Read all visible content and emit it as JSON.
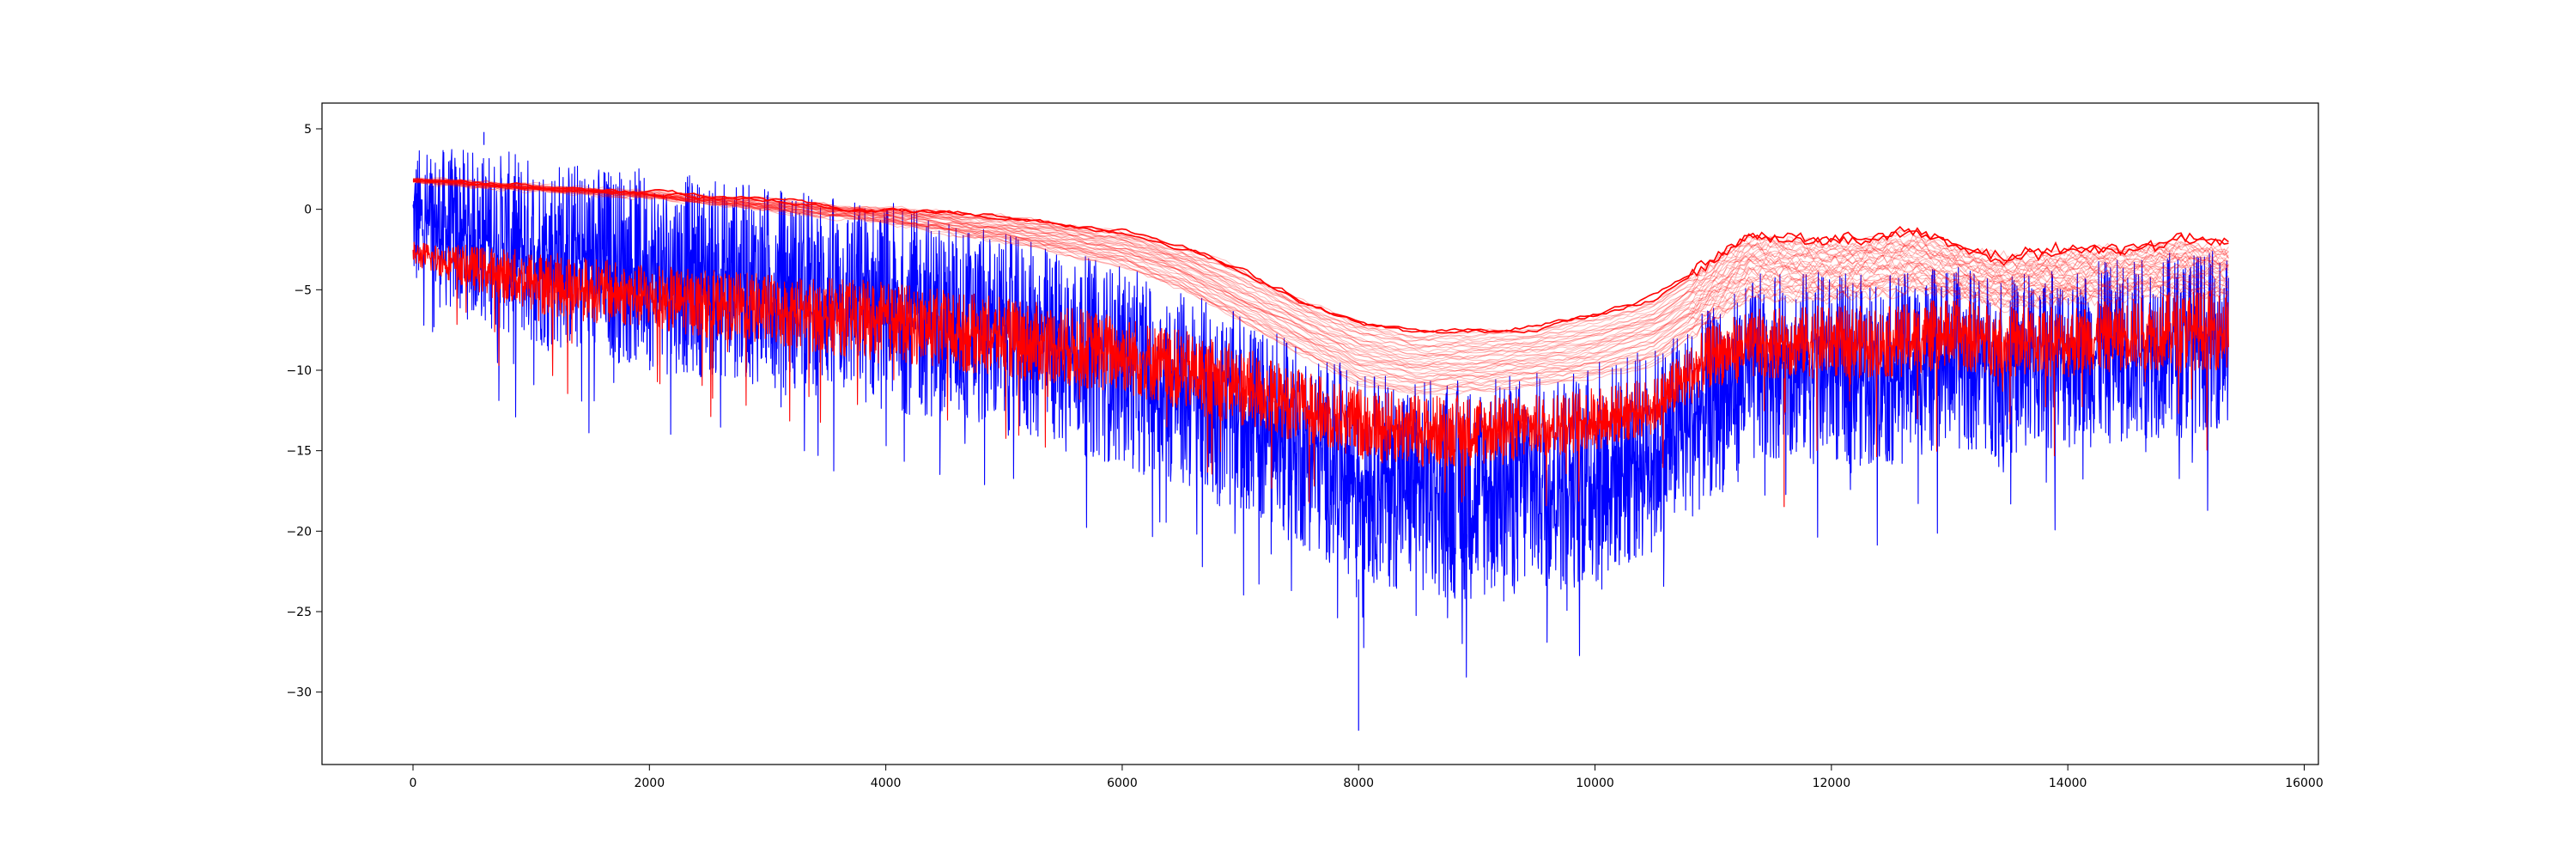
{
  "chart_data": {
    "type": "line",
    "title": "",
    "xlabel": "",
    "ylabel": "",
    "xlim": [
      -770,
      16120
    ],
    "ylim": [
      -34.5,
      6.6
    ],
    "x_ticks": [
      0,
      2000,
      4000,
      6000,
      8000,
      10000,
      12000,
      14000,
      16000
    ],
    "x_tick_labels": [
      "0",
      "2000",
      "4000",
      "6000",
      "8000",
      "10000",
      "12000",
      "14000",
      "16000"
    ],
    "y_ticks": [
      5,
      0,
      -5,
      -10,
      -15,
      -20,
      -25,
      -30
    ],
    "y_tick_labels": [
      "5",
      "0",
      "−5",
      "−10",
      "−15",
      "−20",
      "−25",
      "−30"
    ],
    "x_max": 15360,
    "grid": false,
    "legend": "none",
    "colors": {
      "observed": "#0000ff",
      "model": "#ff0000"
    },
    "series": [
      {
        "role": "observed",
        "style": "noisy",
        "x": [
          0,
          1000,
          2000,
          3000,
          4000,
          5000,
          6000,
          7000,
          7500,
          8000,
          8500,
          9000,
          9500,
          10000,
          10500,
          11000,
          11500,
          12000,
          12500,
          13000,
          13500,
          14000,
          14500,
          15000,
          15360
        ],
        "upper": [
          4.0,
          3.5,
          2.5,
          1.5,
          0.5,
          -1.5,
          -3.5,
          -6.5,
          -8.5,
          -10.0,
          -10.5,
          -10.5,
          -10.0,
          -9.5,
          -8.5,
          -6.0,
          -3.5,
          -4.0,
          -4.0,
          -3.5,
          -4.0,
          -3.5,
          -3.0,
          -2.5,
          -2.5
        ],
        "lower": [
          -5.5,
          -8.5,
          -10.0,
          -11.0,
          -12.5,
          -14.0,
          -16.0,
          -19.0,
          -21.0,
          -23.0,
          -24.0,
          -24.5,
          -24.0,
          -23.5,
          -21.5,
          -18.0,
          -15.5,
          -16.0,
          -16.0,
          -15.0,
          -15.5,
          -15.0,
          -14.5,
          -14.0,
          -13.5
        ],
        "max_value": 4.8,
        "min_value": -32.4
      },
      {
        "role": "model",
        "style": "noisy",
        "x": [
          0,
          1000,
          2000,
          3000,
          4000,
          5000,
          6000,
          7000,
          7500,
          8000,
          8500,
          9000,
          9500,
          10000,
          10500,
          11000,
          11500,
          12000,
          12500,
          13000,
          13500,
          14000,
          14500,
          15000,
          15360
        ],
        "upper": [
          -2.0,
          -2.5,
          -3.5,
          -4.0,
          -4.5,
          -5.5,
          -6.5,
          -8.5,
          -10.0,
          -11.0,
          -11.5,
          -11.5,
          -11.5,
          -11.0,
          -10.5,
          -7.0,
          -6.0,
          -6.0,
          -6.0,
          -5.5,
          -6.0,
          -6.0,
          -5.5,
          -5.0,
          -5.0
        ],
        "lower": [
          -3.5,
          -6.5,
          -7.5,
          -8.5,
          -9.5,
          -10.5,
          -11.5,
          -13.5,
          -14.5,
          -15.5,
          -16.0,
          -16.0,
          -15.5,
          -15.0,
          -14.0,
          -11.0,
          -10.5,
          -10.5,
          -10.5,
          -10.0,
          -10.5,
          -10.5,
          -10.0,
          -10.0,
          -10.0
        ],
        "min_value": -18.5
      },
      {
        "role": "model-ensemble",
        "style": "smooth",
        "members": 40,
        "x": [
          0,
          2000,
          4000,
          5000,
          6000,
          6500,
          7000,
          7500,
          8000,
          8500,
          9000,
          9500,
          10000,
          10500,
          11000,
          11300,
          12000,
          12700,
          13000,
          13500,
          14000,
          14500,
          15000,
          15360
        ],
        "top": [
          1.8,
          1.0,
          0.0,
          -0.4,
          -1.3,
          -2.2,
          -3.7,
          -5.5,
          -7.0,
          -7.7,
          -7.6,
          -7.2,
          -6.5,
          -5.5,
          -3.0,
          -1.5,
          -2.0,
          -1.3,
          -2.2,
          -3.0,
          -2.5,
          -2.3,
          -1.8,
          -2.2
        ],
        "bottom": [
          1.8,
          0.8,
          -0.8,
          -2.0,
          -3.5,
          -5.0,
          -7.0,
          -9.0,
          -10.8,
          -11.5,
          -11.3,
          -11.0,
          -10.5,
          -9.5,
          -7.0,
          -5.5,
          -5.5,
          -5.0,
          -5.5,
          -6.0,
          -5.8,
          -5.5,
          -5.2,
          -5.5
        ]
      }
    ]
  }
}
